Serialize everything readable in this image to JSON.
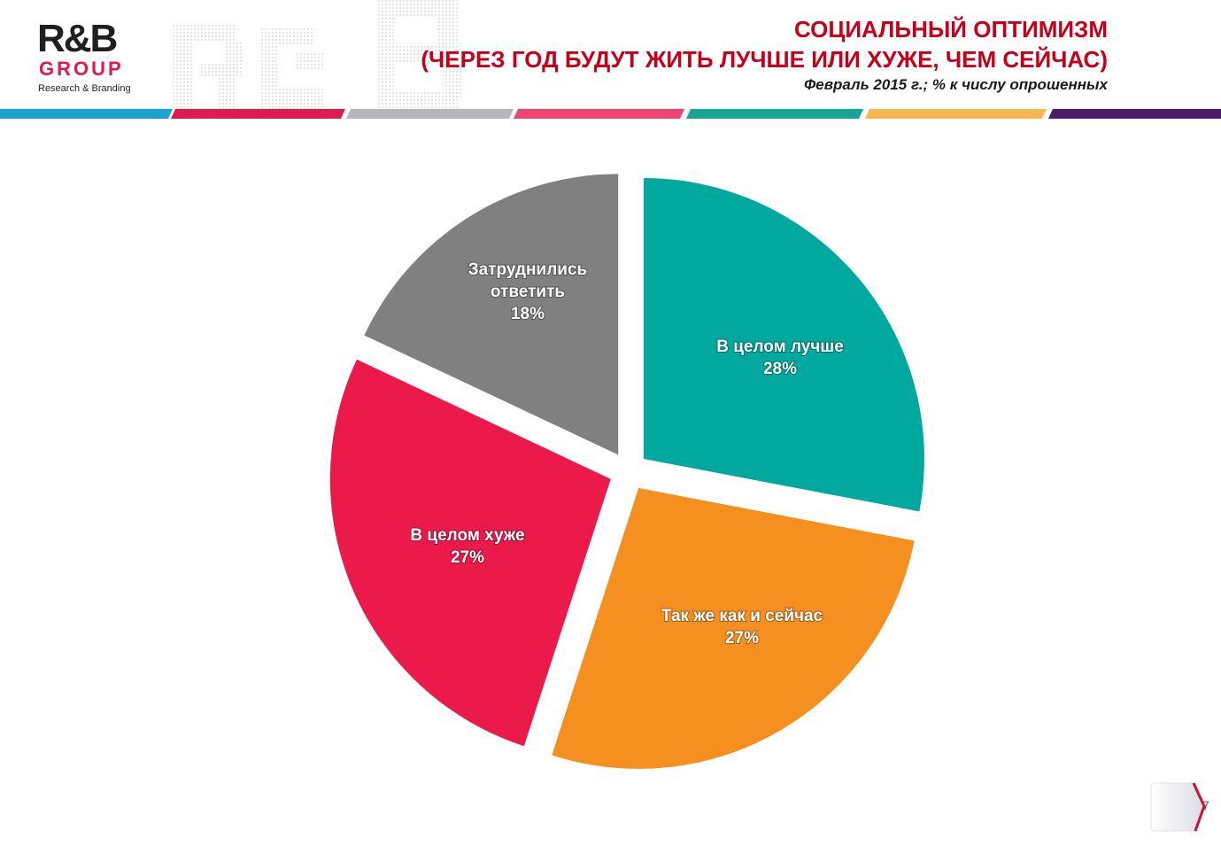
{
  "logo": {
    "brand_text": "R&B",
    "group_text": "GROUP",
    "tagline": "Research & Branding"
  },
  "header": {
    "title_line1": "СОЦИАЛЬНЫЙ ОПТИМИЗМ",
    "title_line2": "(ЧЕРЕЗ ГОД БУДУТ  ЖИТЬ ЛУЧШЕ ИЛИ ХУЖЕ, ЧЕМ СЕЙЧАС)",
    "subtitle": "Февраль 2015 г.; % к числу опрошенных"
  },
  "colors": {
    "title": "#c4001a",
    "stripe": [
      "#1aa3d1",
      "#e0194e",
      "#b7b7bb",
      "#ef4470",
      "#17a596",
      "#f8b650",
      "#4e1a6b"
    ]
  },
  "chart_data": {
    "type": "pie",
    "title": "",
    "slices": [
      {
        "label": "В целом лучше",
        "value_label": "28%",
        "value": 28,
        "color": "#00a89d"
      },
      {
        "label": "Так же как и сейчас",
        "value_label": "27%",
        "value": 27,
        "color": "#f58f20"
      },
      {
        "label": "В целом хуже",
        "value_label": "27%",
        "value": 27,
        "color": "#ec1a4b"
      },
      {
        "label": "Затруднились ответить",
        "value_label": "18%",
        "value": 18,
        "color": "#808080"
      }
    ],
    "exploded": true,
    "legend": "none"
  },
  "page_number": "7"
}
